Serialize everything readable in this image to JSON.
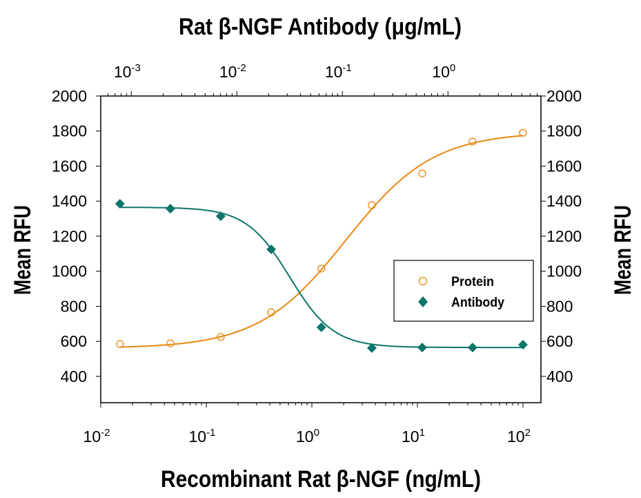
{
  "chart_data": {
    "type": "scatter",
    "title": "Rat β-NGF Antibody (μg/mL)",
    "xlabel": "Recombinant Rat β-NGF (ng/mL)",
    "ylabel": "Mean RFU",
    "ylabel_right": "Mean RFU",
    "x_scale": "log",
    "xlim": [
      0.01,
      148
    ],
    "x_ticks": [
      0.01,
      0.1,
      1,
      10,
      100
    ],
    "x_tick_labels": [
      [
        "10",
        "-2"
      ],
      [
        "10",
        "-1"
      ],
      [
        "10",
        "0"
      ],
      [
        "10",
        "1"
      ],
      [
        "10",
        "2"
      ]
    ],
    "top_axis": {
      "label": "Rat β-NGF Antibody (μg/mL)",
      "scale": "log",
      "xlim": [
        0.000513,
        7.6
      ],
      "ticks": [
        0.001,
        0.01,
        0.1,
        1
      ],
      "tick_labels": [
        [
          "10",
          "-3"
        ],
        [
          "10",
          "-2"
        ],
        [
          "10",
          "-1"
        ],
        [
          "10",
          "0"
        ]
      ]
    },
    "ylim": [
      250,
      2000
    ],
    "y_ticks": [
      400,
      600,
      800,
      1000,
      1200,
      1400,
      1600,
      1800,
      2000
    ],
    "grid": false,
    "legend_position": "center-right",
    "series": [
      {
        "name": "Protein",
        "marker": "open-circle",
        "color": "#E8870E",
        "x": [
          0.0152,
          0.0457,
          0.137,
          0.412,
          1.23,
          3.7,
          11.1,
          33.3,
          100
        ],
        "y": [
          584,
          589,
          625,
          766,
          1015,
          1377,
          1558,
          1740,
          1790
        ]
      },
      {
        "name": "Antibody",
        "marker": "filled-diamond",
        "color": "#0C7468",
        "x": [
          0.0152,
          0.0457,
          0.137,
          0.412,
          1.23,
          3.7,
          11.1,
          33.3,
          100
        ],
        "y": [
          1385,
          1357,
          1314,
          1125,
          680,
          562,
          565,
          565,
          581
        ]
      }
    ]
  }
}
